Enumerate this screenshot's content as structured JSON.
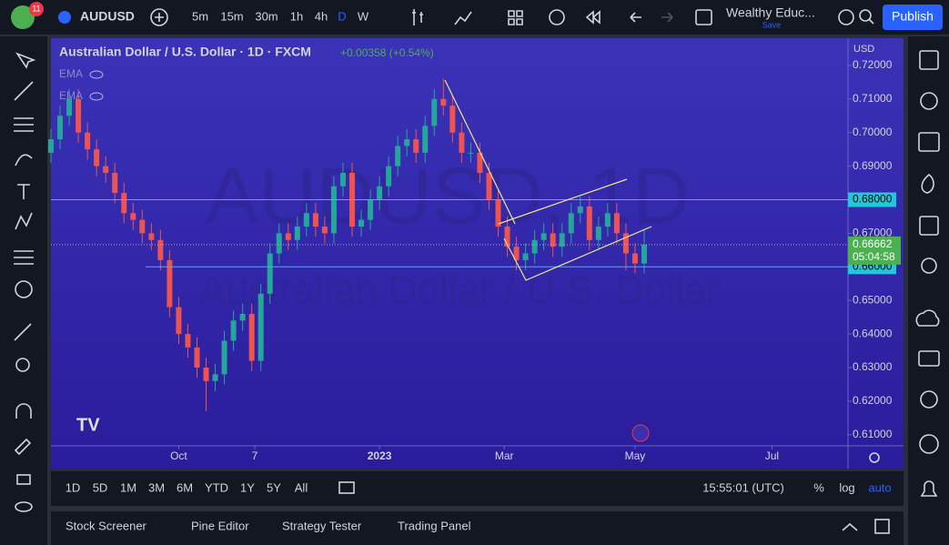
{
  "toolbar": {
    "notifications": "11",
    "symbol": "AUDUSD",
    "intervals": [
      "5m",
      "15m",
      "30m",
      "1h",
      "4h",
      "D",
      "W"
    ],
    "layout_name": "Wealthy Educ...",
    "layout_status": "Save",
    "publish": "Publish"
  },
  "chart_data": {
    "type": "candlestick",
    "title": "Australian Dollar / U.S. Dollar · 1D · FXCM",
    "change": "+0.00358 (+0.54%)",
    "indicators": [
      "EMA",
      "EMA"
    ],
    "watermark_symbol": "AUDUSD, 1D",
    "watermark_name": "Australian Dollar / U.S. Dollar",
    "currency": "USD",
    "up_color": "#26a69a",
    "down_color": "#ef5350",
    "x": [
      0,
      3,
      6,
      9,
      12,
      15,
      18,
      21,
      24,
      27,
      30,
      33,
      36,
      39,
      42,
      45,
      48,
      51,
      54,
      57,
      60,
      63,
      66,
      69,
      72,
      75,
      78,
      81,
      84,
      87,
      90,
      93,
      96,
      99,
      102,
      105,
      108,
      111,
      114,
      117,
      120,
      123,
      126,
      129,
      132,
      135,
      138,
      141,
      144,
      147,
      150,
      153,
      156,
      159,
      162,
      165,
      168,
      171,
      174,
      177,
      180,
      183,
      186,
      189,
      192,
      195
    ],
    "open": [
      0.694,
      0.698,
      0.705,
      0.71,
      0.7,
      0.695,
      0.69,
      0.688,
      0.682,
      0.676,
      0.674,
      0.67,
      0.668,
      0.662,
      0.648,
      0.64,
      0.636,
      0.63,
      0.626,
      0.628,
      0.638,
      0.644,
      0.646,
      0.632,
      0.652,
      0.664,
      0.67,
      0.668,
      0.672,
      0.676,
      0.672,
      0.67,
      0.684,
      0.688,
      0.672,
      0.674,
      0.68,
      0.684,
      0.69,
      0.696,
      0.698,
      0.694,
      0.702,
      0.71,
      0.708,
      0.7,
      0.694,
      0.694,
      0.688,
      0.68,
      0.672,
      0.666,
      0.662,
      0.664,
      0.668,
      0.67,
      0.666,
      0.67,
      0.676,
      0.678,
      0.668,
      0.672,
      0.676,
      0.67,
      0.664,
      0.661
    ],
    "high": [
      0.701,
      0.708,
      0.713,
      0.713,
      0.703,
      0.698,
      0.693,
      0.691,
      0.685,
      0.679,
      0.677,
      0.673,
      0.671,
      0.665,
      0.651,
      0.643,
      0.639,
      0.633,
      0.631,
      0.641,
      0.647,
      0.649,
      0.649,
      0.655,
      0.667,
      0.673,
      0.673,
      0.675,
      0.679,
      0.679,
      0.675,
      0.687,
      0.691,
      0.691,
      0.677,
      0.683,
      0.687,
      0.693,
      0.699,
      0.701,
      0.701,
      0.705,
      0.713,
      0.716,
      0.711,
      0.703,
      0.697,
      0.697,
      0.691,
      0.683,
      0.675,
      0.669,
      0.667,
      0.671,
      0.673,
      0.673,
      0.673,
      0.679,
      0.681,
      0.681,
      0.675,
      0.679,
      0.679,
      0.673,
      0.667,
      0.671
    ],
    "low": [
      0.691,
      0.695,
      0.702,
      0.697,
      0.692,
      0.687,
      0.685,
      0.679,
      0.673,
      0.671,
      0.667,
      0.665,
      0.659,
      0.645,
      0.637,
      0.633,
      0.627,
      0.617,
      0.623,
      0.625,
      0.635,
      0.641,
      0.629,
      0.629,
      0.649,
      0.661,
      0.665,
      0.665,
      0.669,
      0.669,
      0.667,
      0.667,
      0.681,
      0.669,
      0.669,
      0.671,
      0.677,
      0.681,
      0.687,
      0.693,
      0.691,
      0.691,
      0.699,
      0.705,
      0.697,
      0.691,
      0.691,
      0.685,
      0.677,
      0.669,
      0.663,
      0.659,
      0.659,
      0.661,
      0.665,
      0.663,
      0.663,
      0.667,
      0.673,
      0.665,
      0.665,
      0.669,
      0.667,
      0.659,
      0.658,
      0.658
    ],
    "close": [
      0.698,
      0.705,
      0.71,
      0.7,
      0.695,
      0.69,
      0.688,
      0.682,
      0.676,
      0.674,
      0.67,
      0.668,
      0.662,
      0.648,
      0.64,
      0.636,
      0.63,
      0.626,
      0.628,
      0.638,
      0.644,
      0.646,
      0.632,
      0.652,
      0.664,
      0.67,
      0.668,
      0.672,
      0.676,
      0.672,
      0.67,
      0.684,
      0.688,
      0.672,
      0.674,
      0.68,
      0.684,
      0.69,
      0.696,
      0.698,
      0.694,
      0.702,
      0.71,
      0.708,
      0.7,
      0.694,
      0.694,
      0.688,
      0.68,
      0.672,
      0.666,
      0.662,
      0.664,
      0.668,
      0.67,
      0.666,
      0.67,
      0.676,
      0.678,
      0.668,
      0.672,
      0.676,
      0.67,
      0.664,
      0.661,
      0.6666
    ],
    "xlim": [
      0,
      262
    ],
    "xticks": [
      {
        "value": 42,
        "label": "Oct"
      },
      {
        "value": 67,
        "label": "7"
      },
      {
        "value": 108,
        "label": "2023"
      },
      {
        "value": 149,
        "label": "Mar"
      },
      {
        "value": 192,
        "label": "May"
      },
      {
        "value": 237,
        "label": "Jul"
      }
    ],
    "ylim": [
      0.6067,
      0.7281
    ],
    "yticks": [
      {
        "value": 0.72,
        "label": "0.72000"
      },
      {
        "value": 0.71,
        "label": "0.71000"
      },
      {
        "value": 0.7,
        "label": "0.70000"
      },
      {
        "value": 0.69,
        "label": "0.69000"
      },
      {
        "value": 0.67,
        "label": "0.67000"
      },
      {
        "value": 0.65,
        "label": "0.65000"
      },
      {
        "value": 0.64,
        "label": "0.64000"
      },
      {
        "value": 0.63,
        "label": "0.63000"
      },
      {
        "value": 0.62,
        "label": "0.62000"
      },
      {
        "value": 0.61,
        "label": "0.61000"
      }
    ],
    "price_lines": [
      {
        "value": 0.68,
        "label": "0.68000",
        "color": "#26c6da"
      },
      {
        "value": 0.66,
        "label": "0.66000",
        "color": "#26c6da"
      }
    ],
    "last_price": {
      "value": 0.66662,
      "label": "0.66662",
      "countdown": "05:04:58",
      "color": "#4caf50"
    }
  },
  "range_bar": {
    "ranges": [
      "1D",
      "5D",
      "1M",
      "3M",
      "6M",
      "YTD",
      "1Y",
      "5Y",
      "All"
    ],
    "clock": "15:55:01 (UTC)",
    "percent": "%",
    "log": "log",
    "auto": "auto"
  },
  "bottom_panel": {
    "tabs": [
      "Stock Screener",
      "Pine Editor",
      "Strategy Tester",
      "Trading Panel"
    ]
  }
}
